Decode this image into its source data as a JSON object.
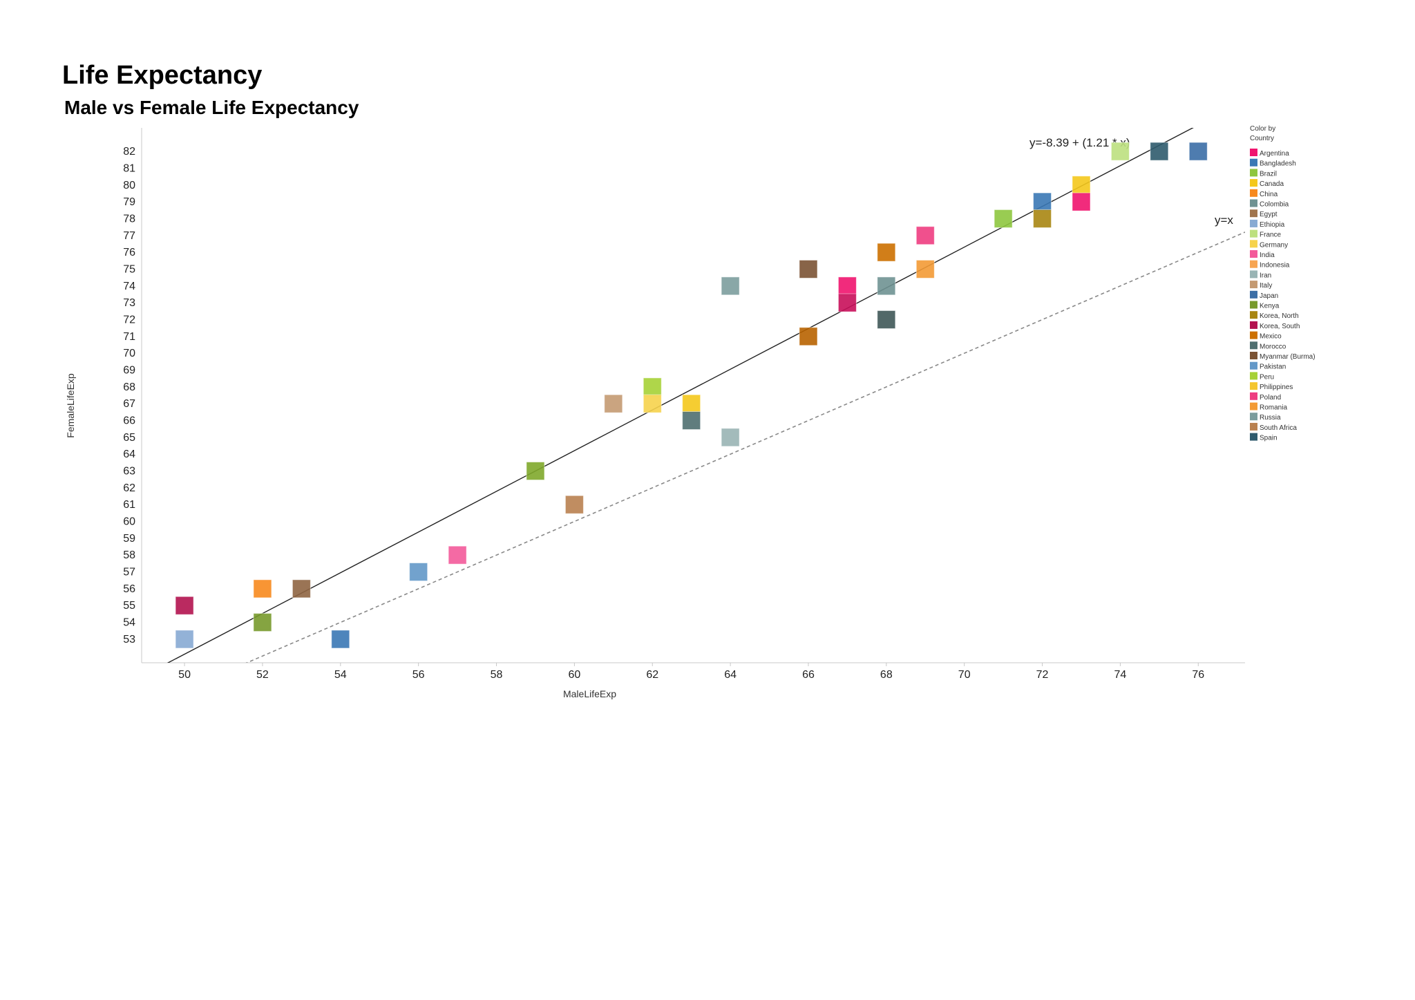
{
  "title": "Life Expectancy",
  "subtitle": "Male vs Female Life Expectancy",
  "chart_data": {
    "type": "scatter",
    "xlabel": "MaleLifeExp",
    "ylabel": "FemaleLifeExp",
    "xlim": [
      48.9,
      77.2
    ],
    "ylim": [
      51.6,
      83.4
    ],
    "xticks": [
      50,
      52,
      54,
      56,
      58,
      60,
      62,
      64,
      66,
      68,
      70,
      72,
      74,
      76
    ],
    "yticks": [
      53,
      54,
      55,
      56,
      57,
      58,
      59,
      60,
      61,
      62,
      63,
      64,
      65,
      66,
      67,
      68,
      69,
      70,
      71,
      72,
      73,
      74,
      75,
      76,
      77,
      78,
      79,
      80,
      81,
      82
    ],
    "grid": false,
    "legend_title": "Color by Country",
    "legend_position": "right",
    "regression": {
      "intercept": -8.39,
      "slope": 1.21,
      "label": "y=-8.39 + (1.21 * x)"
    },
    "identity_line": {
      "label": "y=x",
      "style": "dashed"
    },
    "categories": [
      "Argentina",
      "Bangladesh",
      "Brazil",
      "Canada",
      "China",
      "Colombia",
      "Egypt",
      "Ethiopia",
      "France",
      "Germany",
      "India",
      "Indonesia",
      "Iran",
      "Italy",
      "Japan",
      "Kenya",
      "Korea, North",
      "Korea, South",
      "Mexico",
      "Morocco",
      "Myanmar (Burma)",
      "Pakistan",
      "Peru",
      "Philippines",
      "Poland",
      "Romania",
      "Russia",
      "South Africa",
      "Spain"
    ],
    "colors": [
      "#f0146e",
      "#3a78b5",
      "#8ec63f",
      "#f4c81c",
      "#f7891e",
      "#6f9292",
      "#a0744c",
      "#87aad3",
      "#bde07f",
      "#f6d34c",
      "#f35a9a",
      "#f7a552",
      "#99b4b4",
      "#c49a72",
      "#3b6ea6",
      "#789a2c",
      "#a88612",
      "#b3134f",
      "#cc7000",
      "#4f6f70",
      "#7b5334",
      "#6398c8",
      "#a6d136",
      "#f4c62f",
      "#ee3d81",
      "#f39a35",
      "#7c9d9d",
      "#b98150",
      "#2f5b6d"
    ],
    "points": [
      {
        "x": 50,
        "y": 55,
        "color": "#b3134f"
      },
      {
        "x": 50,
        "y": 53,
        "color": "#87aad3"
      },
      {
        "x": 52,
        "y": 56,
        "color": "#f7891e"
      },
      {
        "x": 52,
        "y": 54,
        "color": "#789a2c"
      },
      {
        "x": 53,
        "y": 56,
        "color": "#8f6543"
      },
      {
        "x": 54,
        "y": 53,
        "color": "#3a78b5"
      },
      {
        "x": 56,
        "y": 57,
        "color": "#6398c8"
      },
      {
        "x": 57,
        "y": 58,
        "color": "#f35a9a"
      },
      {
        "x": 59,
        "y": 63,
        "color": "#80a82b"
      },
      {
        "x": 60,
        "y": 61,
        "color": "#b98150"
      },
      {
        "x": 61,
        "y": 67,
        "color": "#c49a72"
      },
      {
        "x": 62,
        "y": 68,
        "color": "#a6d136"
      },
      {
        "x": 62,
        "y": 67,
        "color": "#f6d34c"
      },
      {
        "x": 63,
        "y": 67,
        "color": "#f4c81c"
      },
      {
        "x": 63,
        "y": 66,
        "color": "#4f6f70"
      },
      {
        "x": 64,
        "y": 74,
        "color": "#7c9d9d"
      },
      {
        "x": 64,
        "y": 65,
        "color": "#99b4b4"
      },
      {
        "x": 66,
        "y": 75,
        "color": "#7b5334"
      },
      {
        "x": 66,
        "y": 71,
        "color": "#b86300"
      },
      {
        "x": 67,
        "y": 74,
        "color": "#f0146e"
      },
      {
        "x": 67,
        "y": 73,
        "color": "#c8105a"
      },
      {
        "x": 68,
        "y": 76,
        "color": "#cc7000"
      },
      {
        "x": 68,
        "y": 74,
        "color": "#6f9292"
      },
      {
        "x": 68,
        "y": 72,
        "color": "#3f5858"
      },
      {
        "x": 69,
        "y": 77,
        "color": "#ee3d81"
      },
      {
        "x": 69,
        "y": 75,
        "color": "#f39a35"
      },
      {
        "x": 71,
        "y": 78,
        "color": "#8ec63f"
      },
      {
        "x": 72,
        "y": 79,
        "color": "#3a78b5"
      },
      {
        "x": 72,
        "y": 78,
        "color": "#a88612"
      },
      {
        "x": 73,
        "y": 80,
        "color": "#f4c81c"
      },
      {
        "x": 73,
        "y": 79,
        "color": "#f0146e"
      },
      {
        "x": 74,
        "y": 82,
        "color": "#bde07f"
      },
      {
        "x": 75,
        "y": 82,
        "color": "#2f5b6d"
      },
      {
        "x": 76,
        "y": 82,
        "color": "#3b6ea6"
      }
    ]
  }
}
